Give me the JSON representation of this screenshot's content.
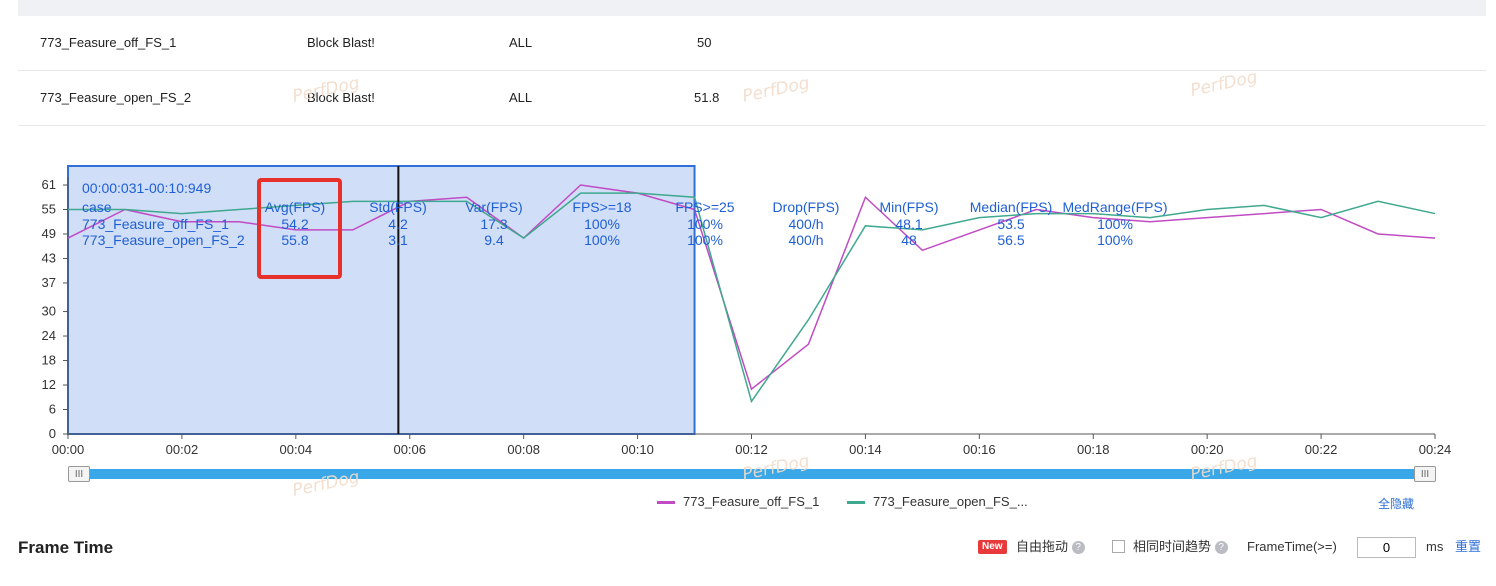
{
  "table": {
    "rows": [
      {
        "case": "773_Feasure_off_FS_1",
        "app": "Block Blast!",
        "scope": "ALL",
        "value": "50"
      },
      {
        "case": "773_Feasure_open_FS_2",
        "app": "Block Blast!",
        "scope": "ALL",
        "value": "51.8"
      }
    ]
  },
  "watermark": "PerfDog",
  "chart_data": {
    "type": "line",
    "x_ticks": [
      "00:00",
      "00:02",
      "00:04",
      "00:06",
      "00:08",
      "00:10",
      "00:12",
      "00:14",
      "00:16",
      "00:18",
      "00:20",
      "00:22",
      "00:24"
    ],
    "y_ticks": [
      "0",
      "6",
      "12",
      "18",
      "24",
      "30",
      "37",
      "43",
      "49",
      "55",
      "61"
    ],
    "ylim": [
      0,
      63
    ],
    "x": [
      0,
      1,
      2,
      3,
      4,
      5,
      6,
      7,
      8,
      9,
      10,
      11,
      12,
      13,
      14,
      15,
      16,
      17,
      18,
      19,
      20,
      21,
      22,
      23,
      24
    ],
    "series": [
      {
        "name": "773_Feasure_off_FS_1",
        "color": "#c04bc4",
        "values": [
          48,
          55,
          52,
          52,
          50,
          50,
          57,
          58,
          48,
          61,
          59,
          55,
          11,
          22,
          58,
          45,
          50,
          55,
          53,
          52,
          53,
          54,
          55,
          49,
          48
        ]
      },
      {
        "name": "773_Feasure_open_FS_2",
        "color": "#3fa88e",
        "values": [
          55,
          55,
          54,
          55,
          56,
          57,
          57,
          57,
          48,
          59,
          59,
          58,
          8,
          28,
          51,
          50,
          53,
          54,
          54,
          53,
          55,
          56,
          53,
          57,
          54
        ]
      }
    ],
    "selection": {
      "start": 0,
      "end": 11,
      "color": "#b7ccf5"
    },
    "cursor_x": 5.8,
    "tooltip": {
      "time_range": "00:00:031-00:10:949",
      "columns": [
        "case",
        "Avg(FPS)",
        "Std(FPS)",
        "Var(FPS)",
        "FPS>=18",
        "FPS>=25",
        "Drop(FPS)",
        "Min(FPS)",
        "Median(FPS)",
        "MedRange(FPS)"
      ],
      "rows": [
        [
          "773_Feasure_off_FS_1",
          "54.2",
          "4.2",
          "17.3",
          "100%",
          "100%",
          "400/h",
          "48.1",
          "53.5",
          "100%"
        ],
        [
          "773_Feasure_open_FS_2",
          "55.8",
          "3.1",
          "9.4",
          "100%",
          "100%",
          "400/h",
          "48",
          "56.5",
          "100%"
        ]
      ]
    },
    "highlight_box_color": "#e8302b"
  },
  "slider": {
    "left_handle": "III",
    "right_handle": "III"
  },
  "legend": {
    "items": [
      {
        "label": "773_Feasure_off_FS_1",
        "color": "#c04bc4"
      },
      {
        "label": "773_Feasure_open_FS_...",
        "color": "#3fa88e"
      }
    ],
    "hide_all": "全隐藏"
  },
  "frame_time": {
    "title": "Frame Time",
    "new_badge": "New",
    "free_drag": "自由拖动",
    "same_trend": "相同时间趋势",
    "frametime_label": "FrameTime(>=)",
    "frametime_value": "0",
    "unit": "ms",
    "reset": "重置"
  }
}
